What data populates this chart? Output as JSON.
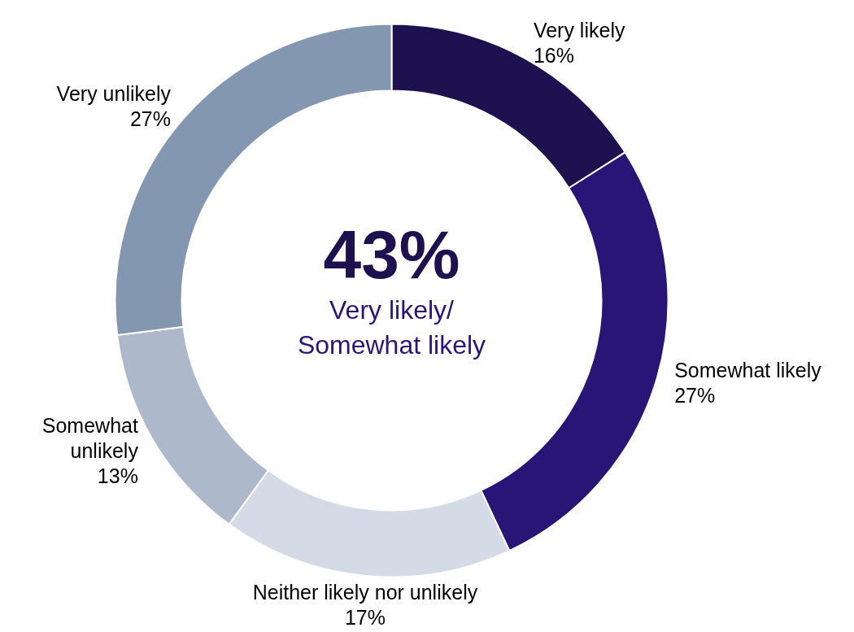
{
  "chart_data": {
    "type": "donut",
    "categories": [
      "Very likely",
      "Somewhat likely",
      "Neither likely nor unlikely",
      "Somewhat unlikely",
      "Very unlikely"
    ],
    "values": [
      16,
      27,
      17,
      13,
      27
    ],
    "colors": [
      "#1e1150",
      "#291575",
      "#d5dbe6",
      "#adb8cb",
      "#8497b0"
    ],
    "value_labels": [
      "16%",
      "27%",
      "17%",
      "13%",
      "27%"
    ],
    "annotations": [
      "43%",
      "Very likely/\nSomewhat likely"
    ]
  }
}
